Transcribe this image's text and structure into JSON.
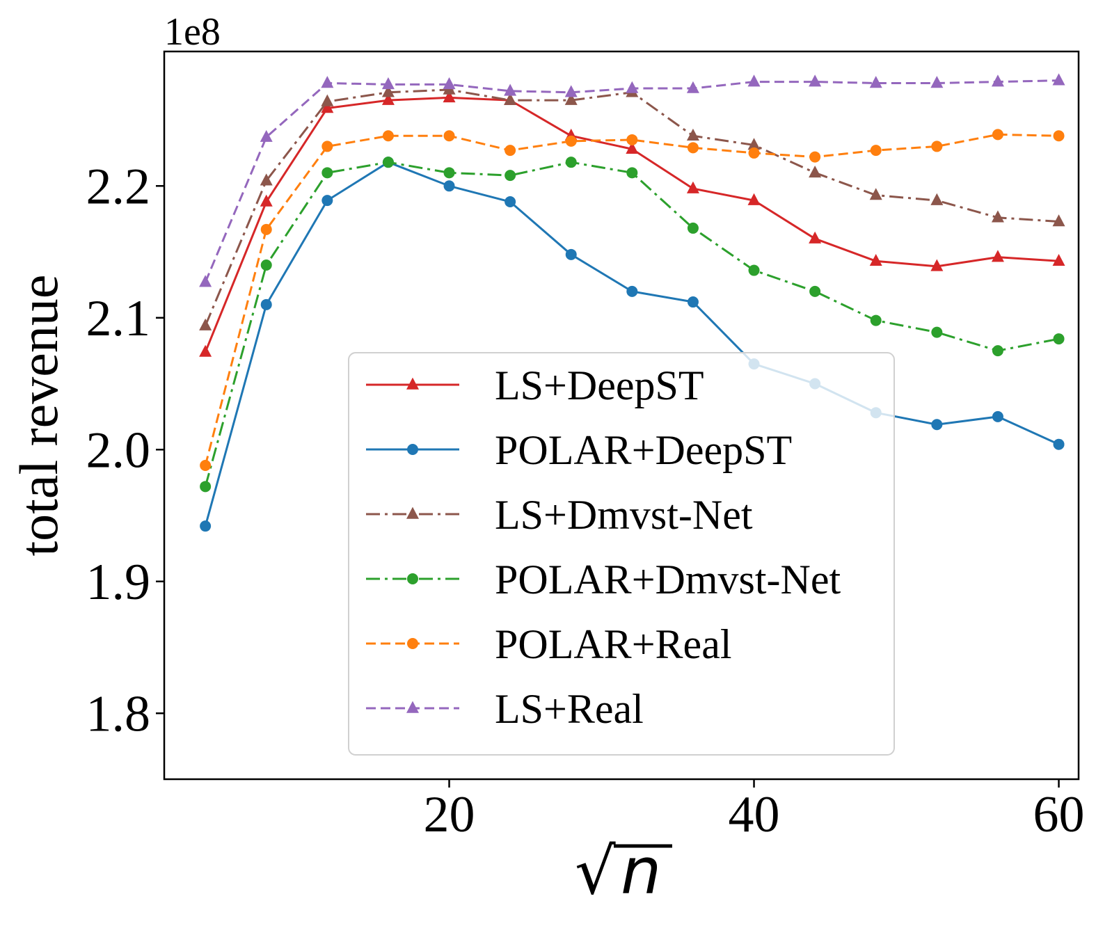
{
  "chart_data": {
    "type": "line",
    "offset_label": "1e8",
    "ylabel": "total revenue",
    "xlabel_symbol": "√",
    "xlabel_var": "n",
    "xlim": [
      1.3,
      61.3
    ],
    "ylim": [
      1.75,
      2.302
    ],
    "x_ticks": [
      20,
      40,
      60
    ],
    "x_tick_labels": [
      "20",
      "40",
      "60"
    ],
    "y_ticks": [
      1.8,
      1.9,
      2.0,
      2.1,
      2.2
    ],
    "y_tick_labels": [
      "1.8",
      "1.9",
      "2.0",
      "2.1",
      "2.2"
    ],
    "x": [
      4,
      8,
      12,
      16,
      20,
      24,
      28,
      32,
      36,
      40,
      44,
      48,
      52,
      56,
      60
    ],
    "legend_location": "lower-center",
    "series": [
      {
        "name": "LS+DeepST",
        "color": "#d62728",
        "marker": "triangle",
        "dash": "solid",
        "values": [
          2.074,
          2.188,
          2.259,
          2.265,
          2.267,
          2.265,
          2.238,
          2.228,
          2.198,
          2.189,
          2.16,
          2.143,
          2.139,
          2.146,
          2.143
        ]
      },
      {
        "name": "POLAR+DeepST",
        "color": "#1f77b4",
        "marker": "circle",
        "dash": "solid",
        "values": [
          1.942,
          2.11,
          2.189,
          2.218,
          2.2,
          2.188,
          2.148,
          2.12,
          2.112,
          2.065,
          2.05,
          2.028,
          2.019,
          2.025,
          2.004
        ]
      },
      {
        "name": "LS+Dmvst-Net",
        "color": "#8c564b",
        "marker": "triangle",
        "dash": "dashdot",
        "values": [
          2.094,
          2.204,
          2.264,
          2.271,
          2.273,
          2.265,
          2.265,
          2.271,
          2.238,
          2.231,
          2.21,
          2.193,
          2.189,
          2.176,
          2.173
        ]
      },
      {
        "name": "POLAR+Dmvst-Net",
        "color": "#2ca02c",
        "marker": "circle",
        "dash": "dashdot",
        "values": [
          1.972,
          2.14,
          2.21,
          2.218,
          2.21,
          2.208,
          2.218,
          2.21,
          2.168,
          2.136,
          2.12,
          2.098,
          2.089,
          2.075,
          2.084
        ]
      },
      {
        "name": "POLAR+Real",
        "color": "#ff7f0e",
        "marker": "circle",
        "dash": "dashed",
        "values": [
          1.988,
          2.167,
          2.23,
          2.238,
          2.238,
          2.227,
          2.234,
          2.235,
          2.229,
          2.225,
          2.222,
          2.227,
          2.23,
          2.239,
          2.238
        ]
      },
      {
        "name": "LS+Real",
        "color": "#9467bd",
        "marker": "triangle",
        "dash": "dashed",
        "values": [
          2.127,
          2.237,
          2.278,
          2.277,
          2.277,
          2.272,
          2.271,
          2.274,
          2.274,
          2.279,
          2.279,
          2.278,
          2.278,
          2.279,
          2.28
        ]
      }
    ]
  }
}
